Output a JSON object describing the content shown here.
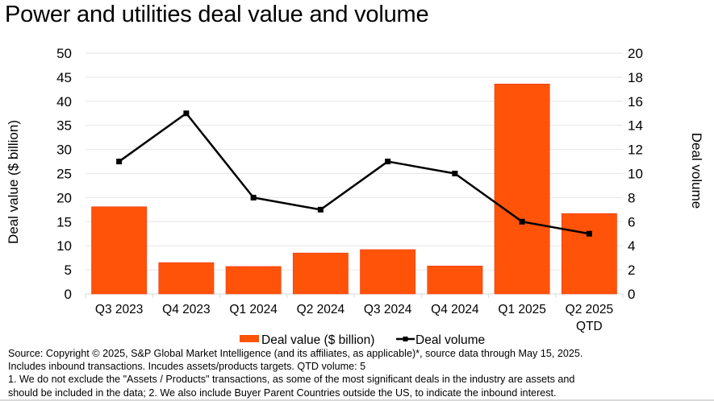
{
  "title": "Power and utilities deal value and volume",
  "chart_data": {
    "type": "bar",
    "title": "Power and utilities deal value and volume",
    "categories": [
      "Q3 2023",
      "Q4 2023",
      "Q1 2024",
      "Q2 2024",
      "Q3 2024",
      "Q4 2024",
      "Q1 2025",
      "Q2 2025 QTD"
    ],
    "category_lines": [
      [
        "Q3 2023"
      ],
      [
        "Q4 2023"
      ],
      [
        "Q1 2024"
      ],
      [
        "Q2 2024"
      ],
      [
        "Q3 2024"
      ],
      [
        "Q4 2024"
      ],
      [
        "Q1 2025"
      ],
      [
        "Q2 2025",
        "QTD"
      ]
    ],
    "series": [
      {
        "name": "Deal value ($ billion)",
        "type": "bar",
        "axis": "left",
        "color": "#FF5309",
        "values": [
          18.1,
          6.5,
          5.7,
          8.5,
          9.2,
          5.8,
          43.6,
          16.7
        ]
      },
      {
        "name": "Deal volume",
        "type": "line",
        "axis": "right",
        "color": "#000000",
        "marker": "square",
        "values": [
          11,
          15,
          8,
          7,
          11,
          10,
          6,
          5
        ]
      }
    ],
    "ylabel": "Deal value ($ billion)",
    "ylim": [
      0,
      50
    ],
    "yticks": [
      0,
      5,
      10,
      15,
      20,
      25,
      30,
      35,
      40,
      45,
      50
    ],
    "y2label": "Deal volume",
    "y2lim": [
      0,
      20
    ],
    "y2ticks": [
      0,
      2,
      4,
      6,
      8,
      10,
      12,
      14,
      16,
      18,
      20
    ],
    "xlabel": "",
    "grid": true,
    "legend": "bottom-center"
  },
  "notes": [
    "Source: Copyright © 2025, S&P Global Market Intelligence (and its affiliates, as applicable)*, source data through May 15, 2025.",
    "Includes inbound transactions. Incudes assets/products targets. QTD volume: 5",
    "1. We do not exclude the \"Assets / Products\" transactions, as some of the most significant deals in the industry are assets and",
    "should be included in the data; 2. We also include Buyer Parent Countries outside the US, to indicate the inbound interest."
  ]
}
